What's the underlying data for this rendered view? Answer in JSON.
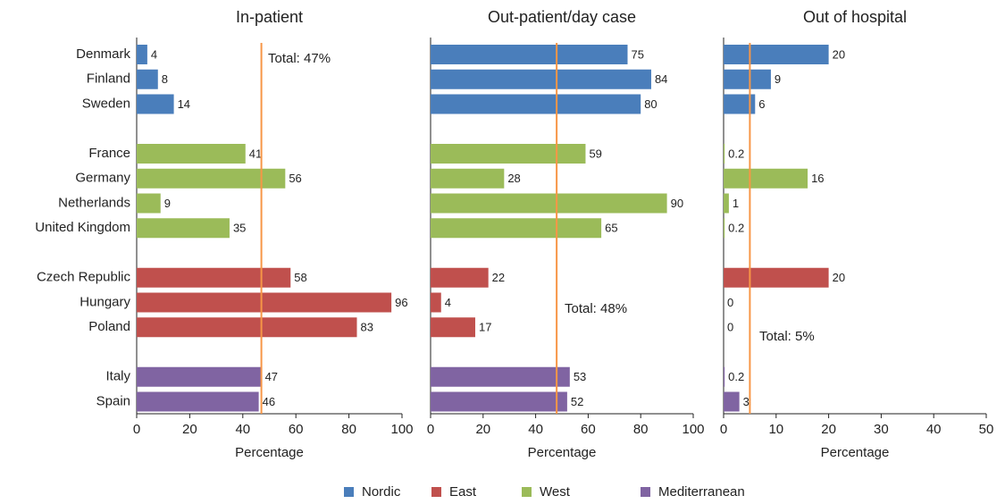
{
  "chart_data": [
    {
      "type": "bar",
      "orientation": "horizontal",
      "title": "In-patient",
      "xlabel": "Percentage",
      "categories": [
        "Denmark",
        "Finland",
        "Sweden",
        "France",
        "Germany",
        "Netherlands",
        "United Kingdom",
        "Czech Republic",
        "Hungary",
        "Poland",
        "Italy",
        "Spain"
      ],
      "values": [
        4,
        8,
        14,
        41,
        56,
        9,
        35,
        58,
        96,
        83,
        47,
        46
      ],
      "colors": [
        "#4a7ebb",
        "#4a7ebb",
        "#4a7ebb",
        "#9bbb59",
        "#9bbb59",
        "#9bbb59",
        "#9bbb59",
        "#c0504d",
        "#c0504d",
        "#c0504d",
        "#8064a2",
        "#8064a2"
      ],
      "xlim": [
        0,
        100
      ],
      "xticks": [
        0,
        20,
        40,
        60,
        80,
        100
      ],
      "reference": {
        "value": 47,
        "label": "Total:  47%",
        "color": "#f79646"
      }
    },
    {
      "type": "bar",
      "orientation": "horizontal",
      "title": "Out-patient/day case",
      "xlabel": "Percentage",
      "values": [
        75,
        84,
        80,
        59,
        28,
        90,
        65,
        22,
        4,
        17,
        53,
        52
      ],
      "colors": [
        "#4a7ebb",
        "#4a7ebb",
        "#4a7ebb",
        "#9bbb59",
        "#9bbb59",
        "#9bbb59",
        "#9bbb59",
        "#c0504d",
        "#c0504d",
        "#c0504d",
        "#8064a2",
        "#8064a2"
      ],
      "xlim": [
        0,
        100
      ],
      "xticks": [
        0,
        20,
        40,
        60,
        80,
        100
      ],
      "reference": {
        "value": 48,
        "label": "Total:  48%",
        "color": "#f79646"
      }
    },
    {
      "type": "bar",
      "orientation": "horizontal",
      "title": "Out of hospital",
      "xlabel": "Percentage",
      "values": [
        20,
        9,
        6,
        0.2,
        16,
        1,
        0.2,
        20,
        0,
        0,
        0.2,
        3
      ],
      "colors": [
        "#4a7ebb",
        "#4a7ebb",
        "#4a7ebb",
        "#9bbb59",
        "#9bbb59",
        "#9bbb59",
        "#9bbb59",
        "#c0504d",
        "#c0504d",
        "#c0504d",
        "#8064a2",
        "#8064a2"
      ],
      "xlim": [
        0,
        50
      ],
      "xticks": [
        0,
        10,
        20,
        30,
        40,
        50
      ],
      "reference": {
        "value": 5,
        "label": "Total:  5%",
        "color": "#f79646"
      }
    }
  ],
  "legend": [
    {
      "name": "Nordic",
      "color": "#4a7ebb"
    },
    {
      "name": "East",
      "color": "#c0504d"
    },
    {
      "name": "West",
      "color": "#9bbb59"
    },
    {
      "name": "Mediterranean",
      "color": "#8064a2"
    }
  ]
}
